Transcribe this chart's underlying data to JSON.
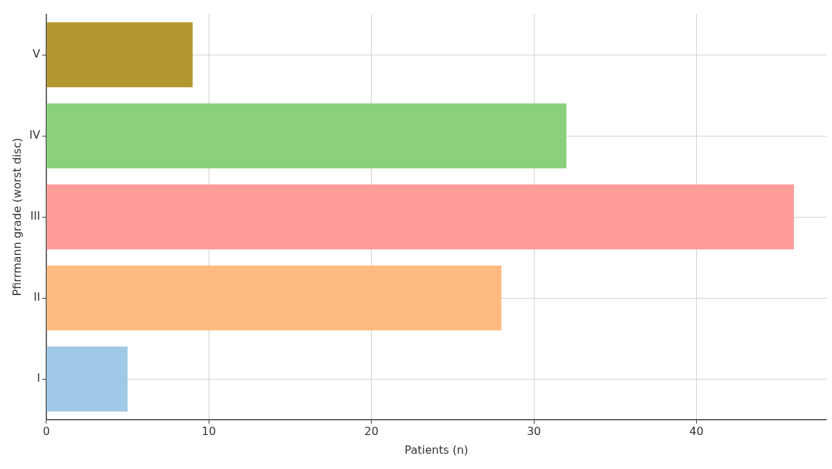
{
  "chart_data": {
    "type": "bar",
    "orientation": "horizontal",
    "xlabel": "Patients (n)",
    "ylabel": "Pfirrmann grade (worst disc)",
    "categories": [
      "V",
      "IV",
      "III",
      "II",
      "I"
    ],
    "values": [
      9,
      32,
      46,
      28,
      5
    ],
    "colors": [
      "#b5972f",
      "#8bd17c",
      "#ff9d9a",
      "#ffbb7f",
      "#a0c9e8"
    ],
    "xlim": [
      0,
      48
    ],
    "xticks": [
      0,
      10,
      20,
      30,
      40
    ],
    "grid": true
  }
}
